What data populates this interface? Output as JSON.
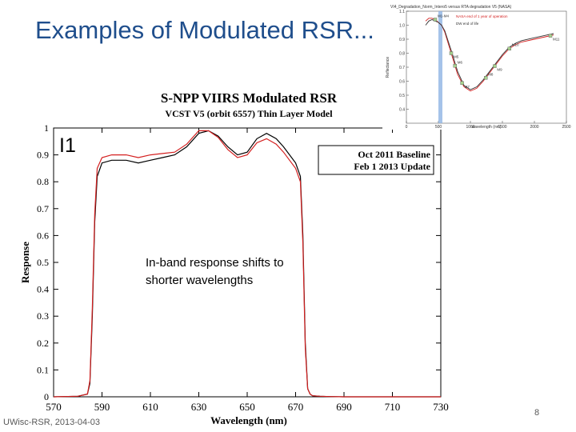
{
  "slide": {
    "title": "Examples of Modulated RSR...",
    "footer": "UWisc-RSR, 2013-04-03",
    "page_number": "8",
    "band_label": "I1",
    "callout": "In-band response shifts to shorter wavelengths"
  },
  "chart_data": [
    {
      "type": "line",
      "title": "S-NPP VIIRS Modulated RSR",
      "subtitle": "VCST V5 (orbit 6557) Thin Layer Model",
      "xlabel": "Wavelength (nm)",
      "ylabel": "Response",
      "xlim": [
        570,
        730
      ],
      "ylim": [
        0,
        1
      ],
      "xticks": [
        "570",
        "590",
        "610",
        "630",
        "650",
        "670",
        "690",
        "710",
        "730"
      ],
      "yticks": [
        "0",
        "0.1",
        "0.2",
        "0.3",
        "0.4",
        "0.5",
        "0.6",
        "0.7",
        "0.8",
        "0.9",
        "1"
      ],
      "legend": [
        "Oct 2011 Baseline",
        "Feb 1 2013 Update"
      ],
      "legend_position": "top-right",
      "series": [
        {
          "name": "Oct 2011 Baseline",
          "color": "#000000",
          "x": [
            570,
            580,
            584,
            585,
            586,
            587,
            588,
            590,
            594,
            600,
            605,
            610,
            615,
            620,
            625,
            630,
            634,
            638,
            642,
            646,
            650,
            654,
            658,
            662,
            665,
            670,
            672,
            673,
            674,
            675,
            676,
            677,
            680,
            684,
            690,
            730
          ],
          "y": [
            0,
            0.002,
            0.01,
            0.05,
            0.3,
            0.65,
            0.82,
            0.87,
            0.88,
            0.88,
            0.87,
            0.88,
            0.89,
            0.9,
            0.93,
            0.98,
            0.99,
            0.97,
            0.93,
            0.9,
            0.91,
            0.96,
            0.98,
            0.96,
            0.93,
            0.87,
            0.82,
            0.6,
            0.2,
            0.03,
            0.01,
            0.004,
            0.002,
            0.001,
            0,
            0
          ]
        },
        {
          "name": "Feb 1 2013 Update",
          "color": "#d42020",
          "x": [
            570,
            580,
            584,
            585,
            586,
            587,
            588,
            590,
            594,
            600,
            605,
            610,
            615,
            620,
            625,
            630,
            634,
            638,
            642,
            646,
            650,
            654,
            658,
            662,
            665,
            670,
            672,
            673,
            674,
            675,
            676,
            677,
            680,
            684,
            690,
            730
          ],
          "y": [
            0,
            0.002,
            0.01,
            0.06,
            0.33,
            0.68,
            0.85,
            0.89,
            0.9,
            0.9,
            0.89,
            0.9,
            0.905,
            0.91,
            0.94,
            0.99,
            0.99,
            0.965,
            0.92,
            0.89,
            0.9,
            0.945,
            0.96,
            0.94,
            0.91,
            0.85,
            0.8,
            0.57,
            0.18,
            0.03,
            0.01,
            0.004,
            0.002,
            0.001,
            0,
            0
          ]
        }
      ]
    },
    {
      "type": "line",
      "title": "VI4_Degradation_Norm_Intero5 versus RTA degradation V5 (NASA)",
      "xlabel": "wavelength (nm)",
      "ylabel": "Reflectance",
      "xlim": [
        0,
        2500
      ],
      "ylim": [
        0.3,
        1.1
      ],
      "xticks": [
        "0",
        "500",
        "1000",
        "1500",
        "2000",
        "2500"
      ],
      "yticks": [
        "0.4",
        "0.5",
        "0.6",
        "0.7",
        "0.8",
        "0.9",
        "1.0",
        "1.1"
      ],
      "legend": [
        "NASA end of 1 year of operation",
        "DW end of life"
      ],
      "band_labels": [
        "M1-M4",
        "M5",
        "M6",
        "M7",
        "M8",
        "M9",
        "M10",
        "M11"
      ],
      "series": [
        {
          "name": "NASA end of 1 year of operation",
          "color": "#d42020",
          "x": [
            300,
            350,
            400,
            450,
            500,
            550,
            600,
            700,
            800,
            900,
            1000,
            1100,
            1200,
            1300,
            1400,
            1500,
            1600,
            1700,
            1800,
            2000,
            2200,
            2300
          ],
          "y": [
            1.03,
            1.05,
            1.05,
            1.04,
            1.02,
            1.0,
            0.95,
            0.8,
            0.65,
            0.56,
            0.53,
            0.55,
            0.6,
            0.66,
            0.72,
            0.78,
            0.83,
            0.86,
            0.88,
            0.9,
            0.92,
            0.93
          ]
        },
        {
          "name": "DW end of life",
          "color": "#333333",
          "x": [
            300,
            350,
            400,
            450,
            500,
            550,
            600,
            700,
            800,
            900,
            1000,
            1100,
            1200,
            1300,
            1400,
            1500,
            1600,
            1700,
            1800,
            2000,
            2200,
            2300
          ],
          "y": [
            1.0,
            1.03,
            1.04,
            1.03,
            1.02,
            1.0,
            0.96,
            0.82,
            0.67,
            0.57,
            0.54,
            0.56,
            0.61,
            0.67,
            0.73,
            0.79,
            0.84,
            0.87,
            0.89,
            0.91,
            0.93,
            0.94
          ]
        }
      ]
    }
  ]
}
